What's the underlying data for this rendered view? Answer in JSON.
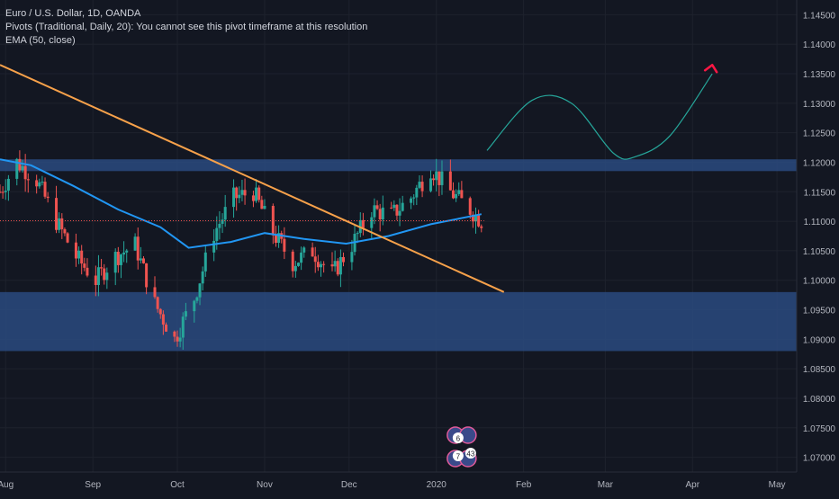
{
  "legend": {
    "symbol_line": "Euro / U.S. Dollar, 1D, OANDA",
    "pivots_line": "Pivots (Traditional, Daily, 20): You cannot see this pivot timeframe at this resolution",
    "ema_line": "EMA (50, close)"
  },
  "colors": {
    "background": "#131722",
    "grid": "#1e222d",
    "up": "#26a69a",
    "down": "#ef5350",
    "ema": "#2196f3",
    "trendline": "#f7a14a",
    "projection": "#26a69a",
    "arrow": "#ff1744",
    "zone": "#2a4a7f",
    "text": "#b2b5be"
  },
  "chart_data": {
    "type": "candlestick",
    "symbol": "EURUSD",
    "timeframe": "1D",
    "x_tick_labels": [
      "Aug",
      "Sep",
      "Oct",
      "Nov",
      "Dec",
      "2020",
      "Feb",
      "Mar",
      "Apr",
      "May"
    ],
    "x_tick_dates": [
      "2019-08-01",
      "2019-09-01",
      "2019-10-01",
      "2019-11-01",
      "2019-12-01",
      "2020-01-01",
      "2020-02-01",
      "2020-03-01",
      "2020-04-01",
      "2020-05-01"
    ],
    "y_tick_labels": [
      "1.14500",
      "1.14000",
      "1.13500",
      "1.13000",
      "1.12500",
      "1.12000",
      "1.11500",
      "1.11000",
      "1.10500",
      "1.10000",
      "1.09500",
      "1.09000",
      "1.08500",
      "1.08000",
      "1.07500",
      "1.07000"
    ],
    "y_ticks": [
      1.145,
      1.14,
      1.135,
      1.13,
      1.125,
      1.12,
      1.115,
      1.11,
      1.105,
      1.1,
      1.095,
      1.09,
      1.085,
      1.08,
      1.075,
      1.07
    ],
    "ylim": [
      1.0675,
      1.1475
    ],
    "xlim": [
      "2019-07-30",
      "2020-05-08"
    ],
    "last_price": 1.1101,
    "close_path": [
      [
        "2019-07-30",
        1.115
      ],
      [
        "2019-08-05",
        1.12
      ],
      [
        "2019-08-12",
        1.117
      ],
      [
        "2019-08-19",
        1.11
      ],
      [
        "2019-08-26",
        1.104
      ],
      [
        "2019-09-02",
        1.1
      ],
      [
        "2019-09-09",
        1.104
      ],
      [
        "2019-09-16",
        1.106
      ],
      [
        "2019-09-23",
        1.096
      ],
      [
        "2019-09-30",
        1.09
      ],
      [
        "2019-10-07",
        1.097
      ],
      [
        "2019-10-14",
        1.108
      ],
      [
        "2019-10-21",
        1.114
      ],
      [
        "2019-10-28",
        1.115
      ],
      [
        "2019-11-04",
        1.108
      ],
      [
        "2019-11-11",
        1.103
      ],
      [
        "2019-11-18",
        1.105
      ],
      [
        "2019-11-25",
        1.101
      ],
      [
        "2019-12-02",
        1.106
      ],
      [
        "2019-12-09",
        1.112
      ],
      [
        "2019-12-16",
        1.111
      ],
      [
        "2019-12-23",
        1.114
      ],
      [
        "2019-12-30",
        1.119
      ],
      [
        "2020-01-06",
        1.115
      ],
      [
        "2020-01-13",
        1.112
      ],
      [
        "2020-01-17",
        1.1101
      ]
    ],
    "ema": [
      [
        "2019-07-30",
        1.1205
      ],
      [
        "2019-08-10",
        1.1195
      ],
      [
        "2019-08-25",
        1.116
      ],
      [
        "2019-09-10",
        1.112
      ],
      [
        "2019-09-25",
        1.109
      ],
      [
        "2019-10-05",
        1.1055
      ],
      [
        "2019-10-20",
        1.1065
      ],
      [
        "2019-11-01",
        1.108
      ],
      [
        "2019-11-15",
        1.107
      ],
      [
        "2019-11-30",
        1.1062
      ],
      [
        "2019-12-15",
        1.1075
      ],
      [
        "2019-12-30",
        1.1095
      ],
      [
        "2020-01-17",
        1.1112
      ]
    ],
    "zones": [
      {
        "from": 1.1185,
        "to": 1.1205
      },
      {
        "from": 1.088,
        "to": 1.098
      }
    ],
    "trendline": {
      "start": [
        "2019-07-30",
        1.1365
      ],
      "end": [
        "2020-01-25",
        1.098
      ]
    },
    "projection": [
      [
        "2020-01-19",
        1.122
      ],
      [
        "2020-02-04",
        1.1305
      ],
      [
        "2020-02-18",
        1.13
      ],
      [
        "2020-03-04",
        1.1215
      ],
      [
        "2020-03-12",
        1.121
      ],
      [
        "2020-03-24",
        1.1245
      ],
      [
        "2020-04-08",
        1.135
      ]
    ],
    "arrow_tip": [
      "2020-04-08",
      1.1365
    ],
    "pivot_markers": [
      "6",
      "7",
      "43"
    ]
  }
}
